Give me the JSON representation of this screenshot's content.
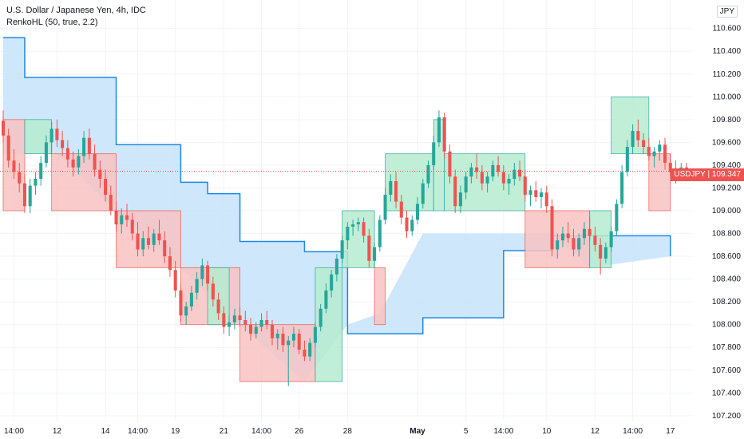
{
  "legend": {
    "title": "U.S. Dollar / Japanese Yen, 4h, IDC",
    "indicator": "RenkoHL (50, true, 2.2)"
  },
  "currency": "JPY",
  "last_tag": {
    "symbol": "USDJPY",
    "price": "109.347"
  },
  "colors": {
    "up": "#26a69a",
    "down": "#ef5350",
    "zone_up_fill": "#b7ecd0",
    "zone_down_fill": "#f8c3c3",
    "band_fill": "#c9e4f9",
    "band_line": "#1e88e5",
    "grid": "#f0f3fa",
    "axis_text": "#131722"
  },
  "chart_data": {
    "type": "candlestick",
    "title": "U.S. Dollar / Japanese Yen, 4h, IDC",
    "ylim": [
      107.15,
      110.85
    ],
    "y_ticks": [
      "110.600",
      "110.400",
      "110.200",
      "110.000",
      "109.800",
      "109.600",
      "109.400",
      "109.200",
      "109.000",
      "108.800",
      "108.600",
      "108.400",
      "108.200",
      "108.000",
      "107.800",
      "107.600",
      "107.400",
      "107.200"
    ],
    "y_tick_values": [
      110.6,
      110.4,
      110.2,
      110.0,
      109.8,
      109.6,
      109.4,
      109.2,
      109.0,
      108.8,
      108.6,
      108.4,
      108.2,
      108.0,
      107.8,
      107.6,
      107.4,
      107.2
    ],
    "x_ticks": [
      {
        "label": "14:00",
        "i": 2
      },
      {
        "label": "12",
        "i": 10
      },
      {
        "label": "14",
        "i": 19
      },
      {
        "label": "14:00",
        "i": 25
      },
      {
        "label": "19",
        "i": 32
      },
      {
        "label": "21",
        "i": 41
      },
      {
        "label": "14:00",
        "i": 48
      },
      {
        "label": "26",
        "i": 55
      },
      {
        "label": "28",
        "i": 64
      },
      {
        "label": "May",
        "i": 77,
        "bold": true
      },
      {
        "label": "5",
        "i": 86
      },
      {
        "label": "14:00",
        "i": 93
      },
      {
        "label": "10",
        "i": 101
      },
      {
        "label": "12",
        "i": 110
      },
      {
        "label": "14:00",
        "i": 117
      },
      {
        "label": "17",
        "i": 124
      }
    ],
    "last_price": 109.347,
    "candles": [
      [
        109.79,
        109.88,
        109.6,
        109.66
      ],
      [
        109.66,
        109.72,
        109.38,
        109.44
      ],
      [
        109.44,
        109.54,
        109.28,
        109.34
      ],
      [
        109.34,
        109.42,
        109.16,
        109.24
      ],
      [
        109.24,
        109.32,
        108.98,
        109.04
      ],
      [
        109.04,
        109.28,
        108.98,
        109.22
      ],
      [
        109.22,
        109.34,
        109.14,
        109.28
      ],
      [
        109.28,
        109.48,
        109.22,
        109.42
      ],
      [
        109.42,
        109.66,
        109.38,
        109.6
      ],
      [
        109.6,
        109.78,
        109.5,
        109.72
      ],
      [
        109.72,
        109.8,
        109.56,
        109.62
      ],
      [
        109.62,
        109.7,
        109.48,
        109.55
      ],
      [
        109.55,
        109.62,
        109.38,
        109.45
      ],
      [
        109.45,
        109.52,
        109.3,
        109.38
      ],
      [
        109.38,
        109.54,
        109.32,
        109.48
      ],
      [
        109.48,
        109.7,
        109.42,
        109.64
      ],
      [
        109.64,
        109.72,
        109.45,
        109.5
      ],
      [
        109.5,
        109.58,
        109.3,
        109.36
      ],
      [
        109.36,
        109.44,
        109.2,
        109.28
      ],
      [
        109.28,
        109.36,
        109.08,
        109.14
      ],
      [
        109.14,
        109.22,
        108.96,
        109.0
      ],
      [
        109.0,
        109.08,
        108.82,
        108.88
      ],
      [
        108.88,
        109.02,
        108.8,
        108.96
      ],
      [
        108.96,
        109.06,
        108.86,
        108.92
      ],
      [
        108.92,
        108.98,
        108.74,
        108.8
      ],
      [
        108.8,
        108.9,
        108.6,
        108.66
      ],
      [
        108.66,
        108.82,
        108.6,
        108.76
      ],
      [
        108.76,
        108.86,
        108.66,
        108.7
      ],
      [
        108.7,
        108.84,
        108.64,
        108.8
      ],
      [
        108.8,
        108.92,
        108.7,
        108.74
      ],
      [
        108.74,
        108.82,
        108.54,
        108.6
      ],
      [
        108.6,
        108.68,
        108.42,
        108.48
      ],
      [
        108.48,
        108.56,
        108.24,
        108.3
      ],
      [
        108.3,
        108.36,
        108.02,
        108.08
      ],
      [
        108.08,
        108.2,
        108.0,
        108.16
      ],
      [
        108.16,
        108.34,
        108.12,
        108.28
      ],
      [
        108.28,
        108.46,
        108.22,
        108.4
      ],
      [
        108.4,
        108.58,
        108.34,
        108.52
      ],
      [
        108.52,
        108.56,
        108.3,
        108.36
      ],
      [
        108.36,
        108.42,
        108.16,
        108.22
      ],
      [
        108.22,
        108.28,
        108.04,
        108.1
      ],
      [
        108.1,
        108.16,
        107.92,
        107.98
      ],
      [
        107.98,
        108.08,
        107.9,
        108.02
      ],
      [
        108.02,
        108.14,
        107.96,
        108.08
      ],
      [
        108.08,
        108.16,
        107.98,
        108.04
      ],
      [
        108.04,
        108.12,
        107.94,
        108.0
      ],
      [
        108.0,
        108.06,
        107.86,
        107.92
      ],
      [
        107.92,
        108.02,
        107.88,
        107.98
      ],
      [
        107.98,
        108.1,
        107.94,
        108.04
      ],
      [
        108.04,
        108.12,
        107.96,
        108.0
      ],
      [
        108.0,
        108.04,
        107.82,
        107.88
      ],
      [
        107.88,
        107.96,
        107.78,
        107.92
      ],
      [
        107.92,
        107.98,
        107.76,
        107.82
      ],
      [
        107.82,
        107.9,
        107.46,
        107.86
      ],
      [
        107.86,
        107.98,
        107.8,
        107.92
      ],
      [
        107.92,
        107.96,
        107.74,
        107.78
      ],
      [
        107.78,
        107.86,
        107.68,
        107.72
      ],
      [
        107.72,
        107.88,
        107.68,
        107.84
      ],
      [
        107.84,
        108.02,
        107.8,
        107.98
      ],
      [
        107.98,
        108.18,
        107.94,
        108.14
      ],
      [
        108.14,
        108.36,
        108.1,
        108.3
      ],
      [
        108.3,
        108.48,
        108.24,
        108.44
      ],
      [
        108.44,
        108.62,
        108.38,
        108.58
      ],
      [
        108.58,
        108.78,
        108.54,
        108.74
      ],
      [
        108.74,
        108.9,
        108.66,
        108.86
      ],
      [
        108.86,
        108.92,
        108.78,
        108.88
      ],
      [
        108.88,
        108.94,
        108.82,
        108.9
      ],
      [
        108.9,
        108.94,
        108.72,
        108.78
      ],
      [
        108.78,
        108.84,
        108.5,
        108.56
      ],
      [
        108.56,
        108.72,
        108.5,
        108.68
      ],
      [
        108.68,
        108.96,
        108.64,
        108.92
      ],
      [
        108.92,
        109.2,
        108.88,
        109.14
      ],
      [
        109.14,
        109.32,
        109.08,
        109.26
      ],
      [
        109.26,
        109.34,
        109.02,
        109.08
      ],
      [
        109.08,
        109.14,
        108.88,
        108.94
      ],
      [
        108.94,
        109.0,
        108.76,
        108.82
      ],
      [
        108.82,
        108.96,
        108.78,
        108.92
      ],
      [
        108.92,
        109.12,
        108.88,
        109.06
      ],
      [
        109.06,
        109.28,
        109.02,
        109.24
      ],
      [
        109.24,
        109.44,
        109.2,
        109.4
      ],
      [
        109.4,
        109.66,
        109.36,
        109.6
      ],
      [
        109.6,
        109.88,
        109.56,
        109.82
      ],
      [
        109.82,
        109.86,
        109.46,
        109.52
      ],
      [
        109.52,
        109.58,
        109.24,
        109.3
      ],
      [
        109.3,
        109.36,
        108.98,
        109.04
      ],
      [
        109.04,
        109.22,
        108.98,
        109.16
      ],
      [
        109.16,
        109.34,
        109.1,
        109.3
      ],
      [
        109.3,
        109.42,
        109.24,
        109.38
      ],
      [
        109.38,
        109.5,
        109.28,
        109.34
      ],
      [
        109.34,
        109.4,
        109.18,
        109.24
      ],
      [
        109.24,
        109.34,
        109.16,
        109.3
      ],
      [
        109.3,
        109.44,
        109.26,
        109.4
      ],
      [
        109.4,
        109.48,
        109.3,
        109.34
      ],
      [
        109.34,
        109.4,
        109.18,
        109.24
      ],
      [
        109.24,
        109.32,
        109.14,
        109.28
      ],
      [
        109.28,
        109.42,
        109.22,
        109.36
      ],
      [
        109.36,
        109.44,
        109.26,
        109.3
      ],
      [
        109.3,
        109.36,
        109.08,
        109.14
      ],
      [
        109.14,
        109.22,
        109.04,
        109.18
      ],
      [
        109.18,
        109.26,
        109.08,
        109.12
      ],
      [
        109.12,
        109.2,
        109.02,
        109.16
      ],
      [
        109.16,
        109.22,
        108.98,
        109.04
      ],
      [
        109.04,
        109.1,
        108.6,
        108.66
      ],
      [
        108.66,
        108.8,
        108.58,
        108.74
      ],
      [
        108.74,
        108.86,
        108.68,
        108.8
      ],
      [
        108.8,
        108.9,
        108.72,
        108.76
      ],
      [
        108.76,
        108.84,
        108.6,
        108.66
      ],
      [
        108.66,
        108.8,
        108.6,
        108.76
      ],
      [
        108.76,
        108.9,
        108.7,
        108.84
      ],
      [
        108.84,
        108.94,
        108.74,
        108.78
      ],
      [
        108.78,
        108.86,
        108.64,
        108.7
      ],
      [
        108.7,
        108.76,
        108.44,
        108.58
      ],
      [
        108.58,
        108.72,
        108.54,
        108.68
      ],
      [
        108.68,
        108.86,
        108.64,
        108.82
      ],
      [
        108.82,
        109.1,
        108.78,
        109.06
      ],
      [
        109.06,
        109.4,
        109.02,
        109.34
      ],
      [
        109.34,
        109.62,
        109.3,
        109.56
      ],
      [
        109.56,
        109.76,
        109.5,
        109.7
      ],
      [
        109.7,
        109.8,
        109.56,
        109.62
      ],
      [
        109.62,
        109.68,
        109.5,
        109.56
      ],
      [
        109.56,
        109.64,
        109.44,
        109.48
      ],
      [
        109.48,
        109.56,
        109.38,
        109.52
      ],
      [
        109.52,
        109.62,
        109.44,
        109.58
      ],
      [
        109.58,
        109.64,
        109.36,
        109.42
      ],
      [
        109.42,
        109.5,
        109.3,
        109.34
      ],
      [
        109.34,
        109.44,
        109.24,
        109.3
      ],
      [
        109.3,
        109.42,
        109.26,
        109.38
      ],
      [
        109.38,
        109.42,
        109.3,
        109.347
      ]
    ],
    "band": {
      "segments": [
        [
          0,
          110.52
        ],
        [
          4,
          110.17
        ],
        [
          21,
          109.58
        ],
        [
          33,
          109.25
        ],
        [
          38,
          109.15
        ],
        [
          44,
          108.73
        ],
        [
          56,
          108.64
        ],
        [
          64,
          107.92
        ],
        [
          78,
          108.06
        ],
        [
          93,
          108.65
        ],
        [
          102,
          108.78
        ],
        [
          124,
          108.6
        ]
      ],
      "bottom": [
        [
          0,
          109.5
        ],
        [
          10,
          109.5
        ],
        [
          21,
          109.0
        ],
        [
          33,
          108.5
        ],
        [
          44,
          108.0
        ],
        [
          56,
          107.5
        ],
        [
          64,
          108.0
        ],
        [
          70,
          108.1
        ],
        [
          78,
          108.8
        ],
        [
          102,
          108.8
        ],
        [
          109,
          108.5
        ],
        [
          124,
          108.6
        ]
      ]
    },
    "zones": [
      {
        "x0": 0,
        "x1": 4,
        "top": 109.8,
        "bottom": 109.0,
        "dir": "down"
      },
      {
        "x0": 4,
        "x1": 9,
        "top": 109.8,
        "bottom": 109.5,
        "dir": "up"
      },
      {
        "x0": 9,
        "x1": 21,
        "top": 109.5,
        "bottom": 109.0,
        "dir": "down"
      },
      {
        "x0": 21,
        "x1": 33,
        "top": 109.0,
        "bottom": 108.5,
        "dir": "down"
      },
      {
        "x0": 33,
        "x1": 44,
        "top": 108.5,
        "bottom": 108.0,
        "dir": "down"
      },
      {
        "x0": 38,
        "x1": 42,
        "top": 108.5,
        "bottom": 108.0,
        "dir": "up"
      },
      {
        "x0": 44,
        "x1": 58,
        "top": 108.0,
        "bottom": 107.5,
        "dir": "down"
      },
      {
        "x0": 58,
        "x1": 63,
        "top": 108.5,
        "bottom": 107.5,
        "dir": "up"
      },
      {
        "x0": 63,
        "x1": 69,
        "top": 109.0,
        "bottom": 108.5,
        "dir": "up"
      },
      {
        "x0": 69,
        "x1": 71,
        "top": 108.5,
        "bottom": 108.0,
        "dir": "down"
      },
      {
        "x0": 71,
        "x1": 80,
        "top": 109.5,
        "bottom": 109.0,
        "dir": "up"
      },
      {
        "x0": 80,
        "x1": 82,
        "top": 109.8,
        "bottom": 109.0,
        "dir": "up"
      },
      {
        "x0": 82,
        "x1": 97,
        "top": 109.5,
        "bottom": 109.0,
        "dir": "up"
      },
      {
        "x0": 97,
        "x1": 109,
        "top": 109.0,
        "bottom": 108.5,
        "dir": "down"
      },
      {
        "x0": 109,
        "x1": 113,
        "top": 109.0,
        "bottom": 108.5,
        "dir": "up"
      },
      {
        "x0": 113,
        "x1": 120,
        "top": 110.0,
        "bottom": 109.5,
        "dir": "up"
      },
      {
        "x0": 120,
        "x1": 124,
        "top": 109.5,
        "bottom": 109.0,
        "dir": "down"
      }
    ]
  }
}
